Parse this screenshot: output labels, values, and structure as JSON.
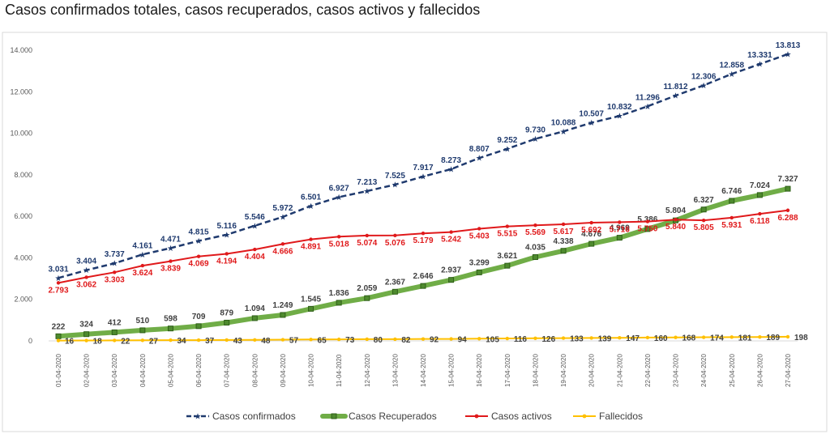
{
  "chart_data": {
    "type": "line",
    "title": "Casos confirmados totales, casos recuperados, casos activos y fallecidos",
    "xlabel": "",
    "ylabel": "",
    "ylim": [
      0,
      14000
    ],
    "yticks": [
      "0",
      "2.000",
      "4.000",
      "6.000",
      "8.000",
      "10.000",
      "12.000",
      "14.000"
    ],
    "grid": false,
    "legend_position": "bottom",
    "categories": [
      "01-04-2020",
      "02-04-2020",
      "03-04-2020",
      "04-04-2020",
      "05-04-2020",
      "06-04-2020",
      "07-04-2020",
      "08-04-2020",
      "09-04-2020",
      "10-04-2020",
      "11-04-2020",
      "12-04-2020",
      "13-04-2020",
      "14-04-2020",
      "15-04-2020",
      "16-04-2020",
      "17-04-2020",
      "18-04-2020",
      "19-04-2020",
      "20-04-2020",
      "21-04-2020",
      "22-04-2020",
      "23-04-2020",
      "24-04-2020",
      "25-04-2020",
      "26-04-2020",
      "27-04-2020"
    ],
    "series": [
      {
        "name": "Casos confirmados",
        "color": "#1f3a6e",
        "style": "dashed-star",
        "values": [
          3031,
          3404,
          3737,
          4161,
          4471,
          4815,
          5116,
          5546,
          5972,
          6501,
          6927,
          7213,
          7525,
          7917,
          8273,
          8807,
          9252,
          9730,
          10088,
          10507,
          10832,
          11296,
          11812,
          12306,
          12858,
          13331,
          13813
        ],
        "labels": [
          "3.031",
          "3.404",
          "3.737",
          "4.161",
          "4.471",
          "4.815",
          "5.116",
          "5.546",
          "5.972",
          "6.501",
          "6.927",
          "7.213",
          "7.525",
          "7.917",
          "8.273",
          "8.807",
          "9.252",
          "9.730",
          "10.088",
          "10.507",
          "10.832",
          "11.296",
          "11.812",
          "12.306",
          "12.858",
          "13.331",
          "13.813"
        ]
      },
      {
        "name": "Casos Recuperados",
        "color": "#70ad47",
        "style": "thick-square",
        "values": [
          222,
          324,
          412,
          510,
          598,
          709,
          879,
          1094,
          1249,
          1545,
          1836,
          2059,
          2367,
          2646,
          2937,
          3299,
          3621,
          4035,
          4338,
          4676,
          4969,
          5386,
          5804,
          6327,
          6746,
          7024,
          7327
        ],
        "labels": [
          "222",
          "324",
          "412",
          "510",
          "598",
          "709",
          "879",
          "1.094",
          "1.249",
          "1.545",
          "1.836",
          "2.059",
          "2.367",
          "2.646",
          "2.937",
          "3.299",
          "3.621",
          "4.035",
          "4.338",
          "4.676",
          "4.969",
          "5.386",
          "5.804",
          "6.327",
          "6.746",
          "7.024",
          "7.327"
        ]
      },
      {
        "name": "Casos activos",
        "color": "#e0191b",
        "style": "line-dot",
        "values": [
          2793,
          3062,
          3303,
          3624,
          3839,
          4069,
          4194,
          4404,
          4666,
          4891,
          5018,
          5074,
          5076,
          5179,
          5242,
          5403,
          5515,
          5569,
          5617,
          5692,
          5716,
          5750,
          5840,
          5805,
          5931,
          6118,
          6288
        ],
        "labels": [
          "2.793",
          "3.062",
          "3.303",
          "3.624",
          "3.839",
          "4.069",
          "4.194",
          "4.404",
          "4.666",
          "4.891",
          "5.018",
          "5.074",
          "5.076",
          "5.179",
          "5.242",
          "5.403",
          "5.515",
          "5.569",
          "5.617",
          "5.692",
          "5.716",
          "5.750",
          "5.840",
          "5.805",
          "5.931",
          "6.118",
          "6.288"
        ]
      },
      {
        "name": "Fallecidos",
        "color": "#ffc000",
        "style": "line-dot",
        "values": [
          16,
          18,
          22,
          27,
          34,
          37,
          43,
          48,
          57,
          65,
          73,
          80,
          82,
          92,
          94,
          105,
          116,
          126,
          133,
          139,
          147,
          160,
          168,
          174,
          181,
          189,
          198
        ],
        "labels": [
          "16",
          "18",
          "22",
          "27",
          "34",
          "37",
          "43",
          "48",
          "57",
          "65",
          "73",
          "80",
          "82",
          "92",
          "94",
          "105",
          "116",
          "126",
          "133",
          "139",
          "147",
          "160",
          "168",
          "174",
          "181",
          "189",
          "198"
        ]
      }
    ]
  }
}
